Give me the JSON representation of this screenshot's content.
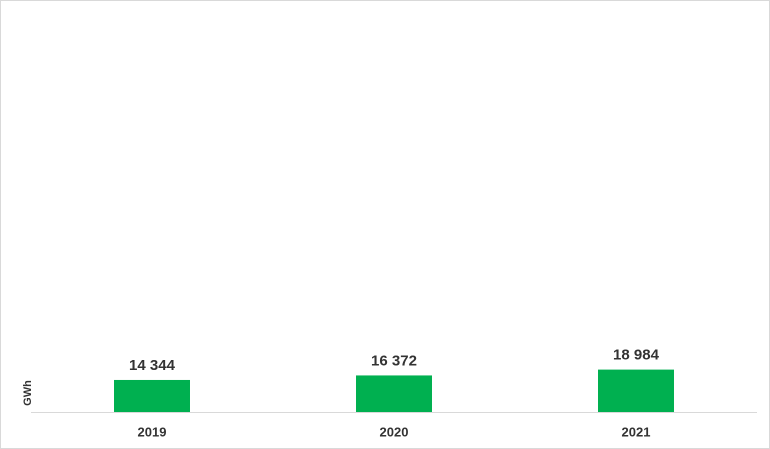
{
  "chart_data": {
    "type": "bar",
    "y_label": "GWh",
    "categories": [
      "2019",
      "2020",
      "2021"
    ],
    "values": [
      14344,
      16372,
      18984
    ],
    "value_labels": [
      "14 344",
      "16 372",
      "18 984"
    ],
    "color": "#00b050",
    "ylim": [
      0,
      180000
    ]
  }
}
